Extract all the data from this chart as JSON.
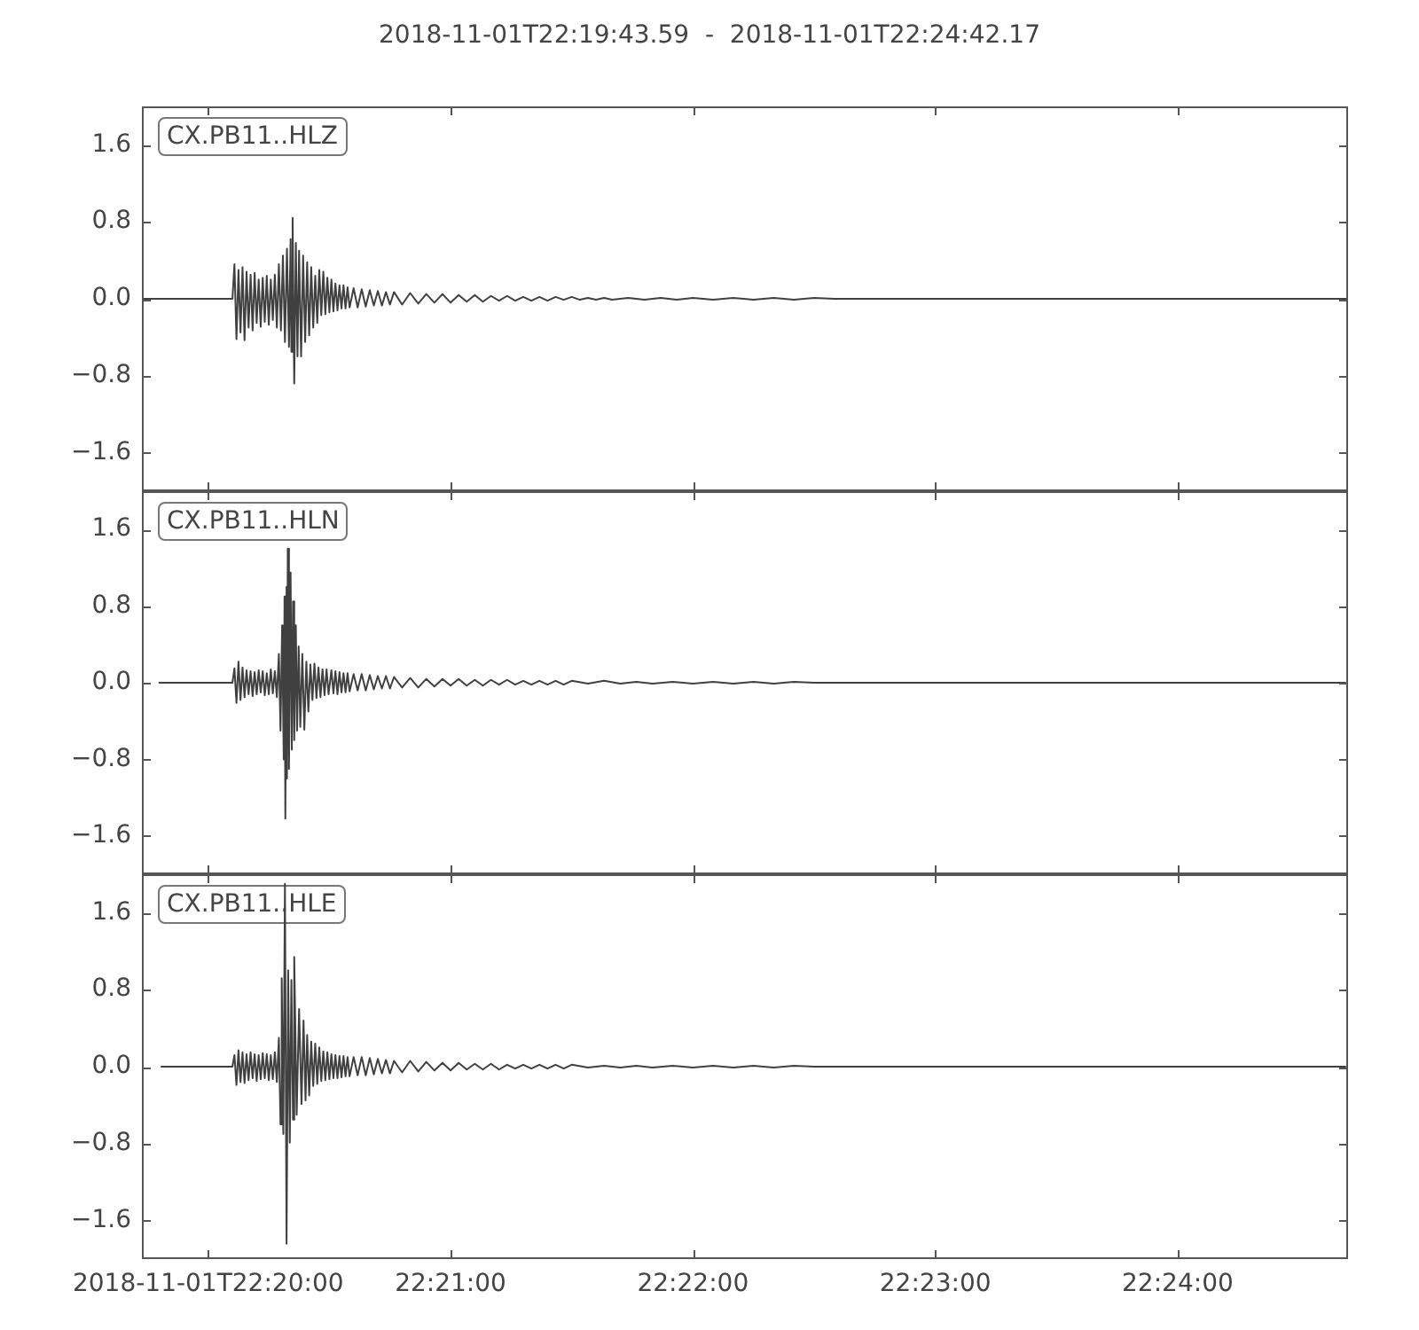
{
  "chart_data": [
    {
      "type": "line",
      "title": "2018-11-01T22:19:43.59  -  2018-11-01T22:24:42.17",
      "annotations": [
        "CX.PB11..HLZ"
      ],
      "color": "#404040",
      "x": [
        "2018-11-01T22:19:43.6",
        "2018-11-01T22:20:06",
        "2018-11-01T22:20:06.5",
        "2018-11-01T22:20:07",
        "2018-11-01T22:20:07.5",
        "2018-11-01T22:20:08",
        "2018-11-01T22:20:08.5",
        "2018-11-01T22:20:09",
        "2018-11-01T22:20:09.5",
        "2018-11-01T22:20:10",
        "2018-11-01T22:20:10.5",
        "2018-11-01T22:20:11",
        "2018-11-01T22:20:11.5",
        "2018-11-01T22:20:12",
        "2018-11-01T22:20:12.5",
        "2018-11-01T22:20:13",
        "2018-11-01T22:20:13.5",
        "2018-11-01T22:20:14",
        "2018-11-01T22:20:14.5",
        "2018-11-01T22:20:15",
        "2018-11-01T22:20:15.5",
        "2018-11-01T22:20:16",
        "2018-11-01T22:20:16.5",
        "2018-11-01T22:20:17",
        "2018-11-01T22:20:17.5",
        "2018-11-01T22:20:18",
        "2018-11-01T22:20:18.5",
        "2018-11-01T22:20:19",
        "2018-11-01T22:20:19.5",
        "2018-11-01T22:20:20",
        "2018-11-01T22:20:20.4",
        "2018-11-01T22:20:20.6",
        "2018-11-01T22:20:20.9",
        "2018-11-01T22:20:21.3",
        "2018-11-01T22:20:21.7",
        "2018-11-01T22:20:22.1",
        "2018-11-01T22:20:22.5",
        "2018-11-01T22:20:23",
        "2018-11-01T22:20:23.5",
        "2018-11-01T22:20:24",
        "2018-11-01T22:20:24.5",
        "2018-11-01T22:20:25",
        "2018-11-01T22:20:25.5",
        "2018-11-01T22:20:26",
        "2018-11-01T22:20:26.5",
        "2018-11-01T22:20:27",
        "2018-11-01T22:20:27.5",
        "2018-11-01T22:20:28",
        "2018-11-01T22:20:28.5",
        "2018-11-01T22:20:29",
        "2018-11-01T22:20:29.5",
        "2018-11-01T22:20:30",
        "2018-11-01T22:20:30.5",
        "2018-11-01T22:20:31",
        "2018-11-01T22:20:31.5",
        "2018-11-01T22:20:32",
        "2018-11-01T22:20:32.5",
        "2018-11-01T22:20:33",
        "2018-11-01T22:20:33.5",
        "2018-11-01T22:20:34",
        "2018-11-01T22:20:34.5",
        "2018-11-01T22:20:35",
        "2018-11-01T22:20:36",
        "2018-11-01T22:20:37",
        "2018-11-01T22:20:38",
        "2018-11-01T22:20:39",
        "2018-11-01T22:20:40",
        "2018-11-01T22:20:41",
        "2018-11-01T22:20:42",
        "2018-11-01T22:20:43",
        "2018-11-01T22:20:44",
        "2018-11-01T22:20:45",
        "2018-11-01T22:20:46",
        "2018-11-01T22:20:48",
        "2018-11-01T22:20:50",
        "2018-11-01T22:20:52",
        "2018-11-01T22:20:54",
        "2018-11-01T22:20:56",
        "2018-11-01T22:20:58",
        "2018-11-01T22:21:00",
        "2018-11-01T22:21:02",
        "2018-11-01T22:21:04",
        "2018-11-01T22:21:06",
        "2018-11-01T22:21:08",
        "2018-11-01T22:21:10",
        "2018-11-01T22:21:12",
        "2018-11-01T22:21:14",
        "2018-11-01T22:21:16",
        "2018-11-01T22:21:18",
        "2018-11-01T22:21:20",
        "2018-11-01T22:21:22",
        "2018-11-01T22:21:24",
        "2018-11-01T22:21:26",
        "2018-11-01T22:21:28",
        "2018-11-01T22:21:30",
        "2018-11-01T22:21:32",
        "2018-11-01T22:21:34",
        "2018-11-01T22:21:36",
        "2018-11-01T22:21:38",
        "2018-11-01T22:21:40",
        "2018-11-01T22:21:44",
        "2018-11-01T22:21:48",
        "2018-11-01T22:21:52",
        "2018-11-01T22:21:56",
        "2018-11-01T22:22:00",
        "2018-11-01T22:22:05",
        "2018-11-01T22:22:10",
        "2018-11-01T22:22:15",
        "2018-11-01T22:22:20",
        "2018-11-01T22:22:25",
        "2018-11-01T22:22:30",
        "2018-11-01T22:22:35",
        "2018-11-01T22:24:42.1"
      ],
      "values": [
        0,
        0,
        0.36,
        -0.42,
        0.3,
        -0.35,
        0.33,
        -0.43,
        0.28,
        -0.3,
        0.25,
        -0.33,
        0.27,
        -0.25,
        0.2,
        -0.29,
        0.22,
        -0.24,
        0.24,
        -0.27,
        0.2,
        -0.22,
        0.25,
        -0.3,
        0.36,
        -0.33,
        0.45,
        -0.45,
        0.52,
        -0.5,
        0.62,
        -0.55,
        0.84,
        -0.88,
        0.58,
        -0.6,
        0.5,
        -0.6,
        0.45,
        -0.45,
        0.38,
        -0.38,
        0.33,
        -0.3,
        0.24,
        -0.25,
        0.3,
        -0.17,
        0.28,
        -0.16,
        0.22,
        -0.14,
        0.2,
        -0.13,
        0.16,
        -0.12,
        0.14,
        -0.1,
        0.14,
        -0.1,
        0.12,
        -0.09,
        0.11,
        -0.09,
        0.1,
        -0.08,
        0.09,
        -0.07,
        0.08,
        -0.07,
        0.07,
        -0.06,
        0.07,
        -0.06,
        0.06,
        -0.05,
        0.05,
        -0.04,
        0.05,
        -0.04,
        0.04,
        -0.03,
        0.04,
        -0.03,
        0.03,
        -0.02,
        0.03,
        -0.02,
        0.02,
        -0.02,
        0.02,
        -0.02,
        0.02,
        -0.01,
        0.02,
        -0.01,
        0.01,
        -0.01,
        0.01,
        -0.01,
        0.01,
        -0.01,
        0.01,
        -0.01,
        0.01,
        -0.01,
        0.01,
        -0.01,
        0.01,
        -0.01,
        0.01,
        0,
        0
      ],
      "xlim": [
        "2018-11-01T22:19:43.59",
        "2018-11-01T22:24:42.17"
      ],
      "xticks": [
        {
          "value": "2018-11-01T22:20:00",
          "label": null
        },
        {
          "value": "2018-11-01T22:21:00",
          "label": null
        },
        {
          "value": "2018-11-01T22:22:00",
          "label": null
        },
        {
          "value": "2018-11-01T22:23:00",
          "label": null
        },
        {
          "value": "2018-11-01T22:24:00",
          "label": null
        }
      ],
      "ylim": [
        -2.0,
        2.0
      ],
      "yticks": [
        {
          "value": -1.6,
          "label": "−1.6"
        },
        {
          "value": -0.8,
          "label": "−0.8"
        },
        {
          "value": 0,
          "label": "0.0"
        },
        {
          "value": 0.8,
          "label": "0.8"
        },
        {
          "value": 1.6,
          "label": "1.6"
        }
      ],
      "tick_labels": "y"
    },
    {
      "type": "line",
      "annotations": [
        "CX.PB11..HLN"
      ],
      "color": "#404040",
      "x": [
        "2018-11-01T22:19:47.9",
        "2018-11-01T22:20:06",
        "2018-11-01T22:20:06.5",
        "2018-11-01T22:20:07",
        "2018-11-01T22:20:07.5",
        "2018-11-01T22:20:08",
        "2018-11-01T22:20:08.5",
        "2018-11-01T22:20:09",
        "2018-11-01T22:20:09.5",
        "2018-11-01T22:20:10",
        "2018-11-01T22:20:10.5",
        "2018-11-01T22:20:11",
        "2018-11-01T22:20:11.5",
        "2018-11-01T22:20:12",
        "2018-11-01T22:20:12.5",
        "2018-11-01T22:20:13",
        "2018-11-01T22:20:13.5",
        "2018-11-01T22:20:14",
        "2018-11-01T22:20:14.5",
        "2018-11-01T22:20:15",
        "2018-11-01T22:20:15.5",
        "2018-11-01T22:20:16",
        "2018-11-01T22:20:16.5",
        "2018-11-01T22:20:17",
        "2018-11-01T22:20:17.5",
        "2018-11-01T22:20:17.9",
        "2018-11-01T22:20:18.3",
        "2018-11-01T22:20:18.7",
        "2018-11-01T22:20:18.9",
        "2018-11-01T22:20:19.1",
        "2018-11-01T22:20:19.4",
        "2018-11-01T22:20:19.5",
        "2018-11-01T22:20:19.7",
        "2018-11-01T22:20:20",
        "2018-11-01T22:20:20.4",
        "2018-11-01T22:20:20.7",
        "2018-11-01T22:20:21",
        "2018-11-01T22:20:21.3",
        "2018-11-01T22:20:21.7",
        "2018-11-01T22:20:22",
        "2018-11-01T22:20:22.4",
        "2018-11-01T22:20:22.8",
        "2018-11-01T22:20:23.3",
        "2018-11-01T22:20:23.8",
        "2018-11-01T22:20:24.3",
        "2018-11-01T22:20:24.8",
        "2018-11-01T22:20:25.3",
        "2018-11-01T22:20:25.8",
        "2018-11-01T22:20:26.3",
        "2018-11-01T22:20:26.8",
        "2018-11-01T22:20:27.3",
        "2018-11-01T22:20:27.8",
        "2018-11-01T22:20:28.3",
        "2018-11-01T22:20:28.8",
        "2018-11-01T22:20:29.3",
        "2018-11-01T22:20:29.8",
        "2018-11-01T22:20:30.5",
        "2018-11-01T22:20:31",
        "2018-11-01T22:20:31.5",
        "2018-11-01T22:20:32",
        "2018-11-01T22:20:32.5",
        "2018-11-01T22:20:33",
        "2018-11-01T22:20:33.5",
        "2018-11-01T22:20:34",
        "2018-11-01T22:20:34.5",
        "2018-11-01T22:20:35",
        "2018-11-01T22:20:36",
        "2018-11-01T22:20:37",
        "2018-11-01T22:20:38",
        "2018-11-01T22:20:39",
        "2018-11-01T22:20:40",
        "2018-11-01T22:20:41",
        "2018-11-01T22:20:42",
        "2018-11-01T22:20:43",
        "2018-11-01T22:20:44",
        "2018-11-01T22:20:45",
        "2018-11-01T22:20:46",
        "2018-11-01T22:20:48",
        "2018-11-01T22:20:50",
        "2018-11-01T22:20:52",
        "2018-11-01T22:20:54",
        "2018-11-01T22:20:56",
        "2018-11-01T22:20:58",
        "2018-11-01T22:21:00",
        "2018-11-01T22:21:02",
        "2018-11-01T22:21:04",
        "2018-11-01T22:21:06",
        "2018-11-01T22:21:08",
        "2018-11-01T22:21:10",
        "2018-11-01T22:21:12",
        "2018-11-01T22:21:14",
        "2018-11-01T22:21:16",
        "2018-11-01T22:21:18",
        "2018-11-01T22:21:20",
        "2018-11-01T22:21:22",
        "2018-11-01T22:21:24",
        "2018-11-01T22:21:26",
        "2018-11-01T22:21:28",
        "2018-11-01T22:21:30",
        "2018-11-01T22:21:34",
        "2018-11-01T22:21:38",
        "2018-11-01T22:21:42",
        "2018-11-01T22:21:46",
        "2018-11-01T22:21:50",
        "2018-11-01T22:21:55",
        "2018-11-01T22:22:00",
        "2018-11-01T22:22:05",
        "2018-11-01T22:22:10",
        "2018-11-01T22:22:15",
        "2018-11-01T22:22:20",
        "2018-11-01T22:22:25",
        "2018-11-01T22:22:30",
        "2018-11-01T22:24:41.5"
      ],
      "values": [
        0,
        0,
        0.15,
        -0.21,
        0.22,
        -0.18,
        0.16,
        -0.15,
        0.13,
        -0.12,
        0.12,
        -0.14,
        0.11,
        -0.12,
        0.13,
        -0.1,
        0.12,
        -0.13,
        0.1,
        -0.12,
        0.14,
        -0.11,
        0.12,
        -0.15,
        0.3,
        -0.5,
        0.6,
        -0.8,
        0.9,
        -1.42,
        1.0,
        -1.0,
        1.4,
        -0.9,
        1.15,
        -0.7,
        0.85,
        -0.6,
        0.6,
        -0.5,
        0.38,
        -0.46,
        0.3,
        -0.49,
        0.22,
        -0.3,
        0.19,
        -0.18,
        0.2,
        -0.16,
        0.16,
        -0.15,
        0.14,
        -0.13,
        0.14,
        -0.12,
        0.13,
        -0.11,
        0.12,
        -0.12,
        0.11,
        -0.1,
        0.1,
        -0.1,
        0.1,
        -0.09,
        0.09,
        -0.08,
        0.09,
        -0.08,
        0.08,
        -0.07,
        0.07,
        -0.06,
        0.07,
        -0.06,
        0.06,
        -0.05,
        0.05,
        -0.05,
        0.04,
        -0.04,
        0.04,
        -0.03,
        0.04,
        -0.03,
        0.03,
        -0.03,
        0.03,
        -0.02,
        0.03,
        -0.02,
        0.02,
        -0.02,
        0.02,
        -0.02,
        0.02,
        -0.02,
        0.02,
        -0.01,
        0.02,
        -0.01,
        0.01,
        -0.01,
        0.01,
        -0.01,
        0.01,
        -0.01,
        0.01,
        -0.01,
        0.01,
        0,
        0
      ],
      "xlim": [
        "2018-11-01T22:19:43.59",
        "2018-11-01T22:24:42.17"
      ],
      "xticks": [
        {
          "value": "2018-11-01T22:20:00",
          "label": null
        },
        {
          "value": "2018-11-01T22:21:00",
          "label": null
        },
        {
          "value": "2018-11-01T22:22:00",
          "label": null
        },
        {
          "value": "2018-11-01T22:23:00",
          "label": null
        },
        {
          "value": "2018-11-01T22:24:00",
          "label": null
        }
      ],
      "ylim": [
        -2.0,
        2.0
      ],
      "yticks": [
        {
          "value": -1.6,
          "label": "−1.6"
        },
        {
          "value": -0.8,
          "label": "−0.8"
        },
        {
          "value": 0,
          "label": "0.0"
        },
        {
          "value": 0.8,
          "label": "0.8"
        },
        {
          "value": 1.6,
          "label": "1.6"
        }
      ],
      "tick_labels": "y"
    },
    {
      "type": "line",
      "annotations": [
        "CX.PB11..HLE"
      ],
      "color": "#404040",
      "x": [
        "2018-11-01T22:19:48.4",
        "2018-11-01T22:20:06",
        "2018-11-01T22:20:06.5",
        "2018-11-01T22:20:07",
        "2018-11-01T22:20:07.5",
        "2018-11-01T22:20:08",
        "2018-11-01T22:20:08.5",
        "2018-11-01T22:20:09",
        "2018-11-01T22:20:09.5",
        "2018-11-01T22:20:10",
        "2018-11-01T22:20:10.5",
        "2018-11-01T22:20:11",
        "2018-11-01T22:20:11.5",
        "2018-11-01T22:20:12",
        "2018-11-01T22:20:12.5",
        "2018-11-01T22:20:13",
        "2018-11-01T22:20:13.5",
        "2018-11-01T22:20:14",
        "2018-11-01T22:20:14.5",
        "2018-11-01T22:20:15",
        "2018-11-01T22:20:15.5",
        "2018-11-01T22:20:16",
        "2018-11-01T22:20:16.5",
        "2018-11-01T22:20:17",
        "2018-11-01T22:20:17.5",
        "2018-11-01T22:20:17.9",
        "2018-11-01T22:20:18.2",
        "2018-11-01T22:20:18.6",
        "2018-11-01T22:20:19",
        "2018-11-01T22:20:19.4",
        "2018-11-01T22:20:19.8",
        "2018-11-01T22:20:20.2",
        "2018-11-01T22:20:20.6",
        "2018-11-01T22:20:21",
        "2018-11-01T22:20:21.3",
        "2018-11-01T22:20:21.9",
        "2018-11-01T22:20:22.5",
        "2018-11-01T22:20:23.1",
        "2018-11-01T22:20:23.6",
        "2018-11-01T22:20:24.1",
        "2018-11-01T22:20:24.5",
        "2018-11-01T22:20:25",
        "2018-11-01T22:20:25.5",
        "2018-11-01T22:20:26",
        "2018-11-01T22:20:26.5",
        "2018-11-01T22:20:27",
        "2018-11-01T22:20:27.5",
        "2018-11-01T22:20:28",
        "2018-11-01T22:20:28.5",
        "2018-11-01T22:20:29",
        "2018-11-01T22:20:29.5",
        "2018-11-01T22:20:30",
        "2018-11-01T22:20:30.5",
        "2018-11-01T22:20:31",
        "2018-11-01T22:20:31.5",
        "2018-11-01T22:20:32",
        "2018-11-01T22:20:32.5",
        "2018-11-01T22:20:33",
        "2018-11-01T22:20:33.5",
        "2018-11-01T22:20:34",
        "2018-11-01T22:20:34.5",
        "2018-11-01T22:20:35",
        "2018-11-01T22:20:36",
        "2018-11-01T22:20:37",
        "2018-11-01T22:20:38",
        "2018-11-01T22:20:39",
        "2018-11-01T22:20:40",
        "2018-11-01T22:20:41",
        "2018-11-01T22:20:42",
        "2018-11-01T22:20:43",
        "2018-11-01T22:20:44",
        "2018-11-01T22:20:45",
        "2018-11-01T22:20:46",
        "2018-11-01T22:20:48",
        "2018-11-01T22:20:50",
        "2018-11-01T22:20:52",
        "2018-11-01T22:20:54",
        "2018-11-01T22:20:56",
        "2018-11-01T22:20:58",
        "2018-11-01T22:21:00",
        "2018-11-01T22:21:02",
        "2018-11-01T22:21:04",
        "2018-11-01T22:21:06",
        "2018-11-01T22:21:08",
        "2018-11-01T22:21:10",
        "2018-11-01T22:21:12",
        "2018-11-01T22:21:14",
        "2018-11-01T22:21:16",
        "2018-11-01T22:21:18",
        "2018-11-01T22:21:20",
        "2018-11-01T22:21:22",
        "2018-11-01T22:21:24",
        "2018-11-01T22:21:26",
        "2018-11-01T22:21:28",
        "2018-11-01T22:21:30",
        "2018-11-01T22:21:34",
        "2018-11-01T22:21:38",
        "2018-11-01T22:21:42",
        "2018-11-01T22:21:46",
        "2018-11-01T22:21:50",
        "2018-11-01T22:21:55",
        "2018-11-01T22:22:00",
        "2018-11-01T22:22:05",
        "2018-11-01T22:22:10",
        "2018-11-01T22:22:15",
        "2018-11-01T22:22:20",
        "2018-11-01T22:22:25",
        "2018-11-01T22:22:30",
        "2018-11-01T22:24:41.5"
      ],
      "values": [
        0,
        0,
        0.12,
        -0.19,
        0.17,
        -0.16,
        0.15,
        -0.17,
        0.13,
        -0.14,
        0.15,
        -0.12,
        0.13,
        -0.15,
        0.12,
        -0.13,
        0.14,
        -0.12,
        0.13,
        -0.14,
        0.12,
        -0.13,
        0.15,
        -0.16,
        0.3,
        -0.6,
        0.92,
        -0.7,
        1.9,
        -1.84,
        1.0,
        -0.79,
        0.9,
        -0.55,
        1.14,
        -0.5,
        0.6,
        -0.39,
        0.48,
        -0.35,
        0.33,
        -0.3,
        0.26,
        -0.2,
        0.24,
        -0.18,
        0.2,
        -0.15,
        0.16,
        -0.14,
        0.15,
        -0.13,
        0.13,
        -0.12,
        0.12,
        -0.12,
        0.11,
        -0.11,
        0.11,
        -0.1,
        0.1,
        -0.1,
        0.1,
        -0.09,
        0.1,
        -0.09,
        0.09,
        -0.08,
        0.08,
        -0.07,
        0.07,
        -0.07,
        0.06,
        -0.06,
        0.06,
        -0.05,
        0.05,
        -0.04,
        0.04,
        -0.04,
        0.04,
        -0.03,
        0.03,
        -0.03,
        0.03,
        -0.03,
        0.02,
        -0.02,
        0.02,
        -0.02,
        0.02,
        -0.02,
        0.02,
        -0.02,
        0.02,
        -0.01,
        0.01,
        -0.01,
        0.01,
        -0.01,
        0.01,
        -0.01,
        0.01,
        -0.01,
        0.01,
        -0.01,
        0.01,
        0,
        0
      ],
      "xlim": [
        "2018-11-01T22:19:43.59",
        "2018-11-01T22:24:42.17"
      ],
      "xticks": [
        {
          "value": "2018-11-01T22:20:00",
          "label": "2018-11-01T22:20:00"
        },
        {
          "value": "2018-11-01T22:21:00",
          "label": "22:21:00"
        },
        {
          "value": "2018-11-01T22:22:00",
          "label": "22:22:00"
        },
        {
          "value": "2018-11-01T22:23:00",
          "label": "22:23:00"
        },
        {
          "value": "2018-11-01T22:24:00",
          "label": "22:24:00"
        }
      ],
      "ylim": [
        -2.0,
        2.0
      ],
      "yticks": [
        {
          "value": -1.6,
          "label": "−1.6"
        },
        {
          "value": -0.8,
          "label": "−0.8"
        },
        {
          "value": 0,
          "label": "0.0"
        },
        {
          "value": 0.8,
          "label": "0.8"
        },
        {
          "value": 1.6,
          "label": "1.6"
        }
      ]
    }
  ]
}
